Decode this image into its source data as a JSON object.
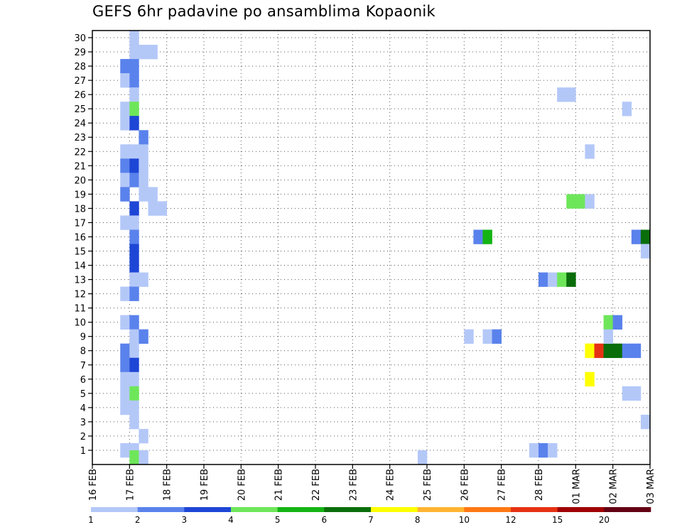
{
  "title": "GEFS 6hr padavine po ansamblima Kopaonik",
  "chart_data": {
    "type": "heatmap",
    "title": "GEFS 6hr padavine po ansamblima Kopaonik",
    "x_tick_labels": [
      "16 FEB",
      "17 FEB",
      "18 FEB",
      "19 FEB",
      "20 FEB",
      "21 FEB",
      "22 FEB",
      "23 FEB",
      "24 FEB",
      "25 FEB",
      "26 FEB",
      "27 FEB",
      "28 FEB",
      "01 MAR",
      "02 MAR",
      "03 MAR"
    ],
    "y_tick_labels": [
      "1",
      "2",
      "3",
      "4",
      "5",
      "6",
      "7",
      "8",
      "9",
      "10",
      "11",
      "12",
      "13",
      "14",
      "15",
      "16",
      "17",
      "18",
      "19",
      "20",
      "21",
      "22",
      "23",
      "24",
      "25",
      "26",
      "27",
      "28",
      "29",
      "30"
    ],
    "steps_per_day": 4,
    "grid": "dotted",
    "colorbar": {
      "position": "bottom",
      "tick_labels": [
        "1",
        "2",
        "3",
        "4",
        "5",
        "6",
        "7",
        "8",
        "10",
        "12",
        "15",
        "20"
      ],
      "colors": [
        "#b4c8f8",
        "#5a82ec",
        "#1e46d6",
        "#6ee65a",
        "#14b414",
        "#0a6e0a",
        "#ffff00",
        "#ffb432",
        "#ff7814",
        "#e63214",
        "#a00000",
        "#640014"
      ]
    },
    "cells": [
      {
        "step": 4,
        "member": 30,
        "cls": 0
      },
      {
        "step": 4,
        "member": 29,
        "cls": 0
      },
      {
        "step": 5,
        "member": 29,
        "cls": 0
      },
      {
        "step": 6,
        "member": 29,
        "cls": 0
      },
      {
        "step": 3,
        "member": 28,
        "cls": 1
      },
      {
        "step": 4,
        "member": 28,
        "cls": 1
      },
      {
        "step": 3,
        "member": 27,
        "cls": 0
      },
      {
        "step": 4,
        "member": 27,
        "cls": 1
      },
      {
        "step": 4,
        "member": 26,
        "cls": 0
      },
      {
        "step": 3,
        "member": 25,
        "cls": 0
      },
      {
        "step": 4,
        "member": 25,
        "cls": 3
      },
      {
        "step": 3,
        "member": 24,
        "cls": 0
      },
      {
        "step": 4,
        "member": 24,
        "cls": 2
      },
      {
        "step": 5,
        "member": 23,
        "cls": 1
      },
      {
        "step": 3,
        "member": 22,
        "cls": 0
      },
      {
        "step": 4,
        "member": 22,
        "cls": 0
      },
      {
        "step": 5,
        "member": 22,
        "cls": 0
      },
      {
        "step": 3,
        "member": 21,
        "cls": 1
      },
      {
        "step": 4,
        "member": 21,
        "cls": 2
      },
      {
        "step": 5,
        "member": 21,
        "cls": 0
      },
      {
        "step": 3,
        "member": 20,
        "cls": 0
      },
      {
        "step": 4,
        "member": 20,
        "cls": 1
      },
      {
        "step": 5,
        "member": 20,
        "cls": 0
      },
      {
        "step": 3,
        "member": 19,
        "cls": 1
      },
      {
        "step": 5,
        "member": 19,
        "cls": 0
      },
      {
        "step": 6,
        "member": 19,
        "cls": 0
      },
      {
        "step": 4,
        "member": 18,
        "cls": 2
      },
      {
        "step": 6,
        "member": 18,
        "cls": 0
      },
      {
        "step": 7,
        "member": 18,
        "cls": 0
      },
      {
        "step": 3,
        "member": 17,
        "cls": 0
      },
      {
        "step": 4,
        "member": 17,
        "cls": 0
      },
      {
        "step": 4,
        "member": 16,
        "cls": 1
      },
      {
        "step": 4,
        "member": 15,
        "cls": 2
      },
      {
        "step": 4,
        "member": 14,
        "cls": 2
      },
      {
        "step": 4,
        "member": 13,
        "cls": 0
      },
      {
        "step": 5,
        "member": 13,
        "cls": 0
      },
      {
        "step": 3,
        "member": 12,
        "cls": 0
      },
      {
        "step": 4,
        "member": 12,
        "cls": 1
      },
      {
        "step": 3,
        "member": 10,
        "cls": 0
      },
      {
        "step": 4,
        "member": 10,
        "cls": 1
      },
      {
        "step": 4,
        "member": 9,
        "cls": 0
      },
      {
        "step": 5,
        "member": 9,
        "cls": 1
      },
      {
        "step": 3,
        "member": 8,
        "cls": 1
      },
      {
        "step": 4,
        "member": 8,
        "cls": 0
      },
      {
        "step": 3,
        "member": 7,
        "cls": 1
      },
      {
        "step": 4,
        "member": 7,
        "cls": 2
      },
      {
        "step": 3,
        "member": 6,
        "cls": 0
      },
      {
        "step": 4,
        "member": 6,
        "cls": 0
      },
      {
        "step": 3,
        "member": 5,
        "cls": 0
      },
      {
        "step": 4,
        "member": 5,
        "cls": 3
      },
      {
        "step": 3,
        "member": 4,
        "cls": 0
      },
      {
        "step": 4,
        "member": 4,
        "cls": 0
      },
      {
        "step": 4,
        "member": 3,
        "cls": 0
      },
      {
        "step": 5,
        "member": 2,
        "cls": 0
      },
      {
        "step": 3,
        "member": 1,
        "cls": 0
      },
      {
        "step": 4,
        "member": 1,
        "cls": 0
      },
      {
        "step": 4,
        "member": 0.5,
        "cls": 3
      },
      {
        "step": 5,
        "member": 0.5,
        "cls": 0
      },
      {
        "step": 35,
        "member": 0.5,
        "cls": 0
      },
      {
        "step": 41,
        "member": 16,
        "cls": 1
      },
      {
        "step": 42,
        "member": 16,
        "cls": 4
      },
      {
        "step": 40,
        "member": 9,
        "cls": 0
      },
      {
        "step": 42,
        "member": 9,
        "cls": 0
      },
      {
        "step": 43,
        "member": 9,
        "cls": 1
      },
      {
        "step": 47,
        "member": 1,
        "cls": 0
      },
      {
        "step": 48,
        "member": 1,
        "cls": 1
      },
      {
        "step": 49,
        "member": 1,
        "cls": 0
      },
      {
        "step": 48,
        "member": 13,
        "cls": 1
      },
      {
        "step": 49,
        "member": 13,
        "cls": 0
      },
      {
        "step": 50,
        "member": 13,
        "cls": 3
      },
      {
        "step": 51,
        "member": 13,
        "cls": 5
      },
      {
        "step": 50,
        "member": 26,
        "cls": 0
      },
      {
        "step": 51,
        "member": 26,
        "cls": 0
      },
      {
        "step": 51,
        "member": 18.5,
        "cls": 3
      },
      {
        "step": 52,
        "member": 18.5,
        "cls": 3
      },
      {
        "step": 53,
        "member": 18.5,
        "cls": 0
      },
      {
        "step": 53,
        "member": 22,
        "cls": 0
      },
      {
        "step": 53,
        "member": 8,
        "cls": 6
      },
      {
        "step": 54,
        "member": 8,
        "cls": 9
      },
      {
        "step": 55,
        "member": 8,
        "cls": 5
      },
      {
        "step": 56,
        "member": 8,
        "cls": 5
      },
      {
        "step": 57,
        "member": 8,
        "cls": 1
      },
      {
        "step": 58,
        "member": 8,
        "cls": 1
      },
      {
        "step": 53,
        "member": 6,
        "cls": 6
      },
      {
        "step": 55,
        "member": 10,
        "cls": 3
      },
      {
        "step": 56,
        "member": 10,
        "cls": 1
      },
      {
        "step": 55,
        "member": 9,
        "cls": 0
      },
      {
        "step": 57,
        "member": 25,
        "cls": 0
      },
      {
        "step": 57,
        "member": 5,
        "cls": 0
      },
      {
        "step": 58,
        "member": 5,
        "cls": 0
      },
      {
        "step": 58,
        "member": 16,
        "cls": 1
      },
      {
        "step": 59,
        "member": 16,
        "cls": 5
      },
      {
        "step": 59,
        "member": 15,
        "cls": 0
      },
      {
        "step": 59,
        "member": 3,
        "cls": 0
      }
    ]
  }
}
